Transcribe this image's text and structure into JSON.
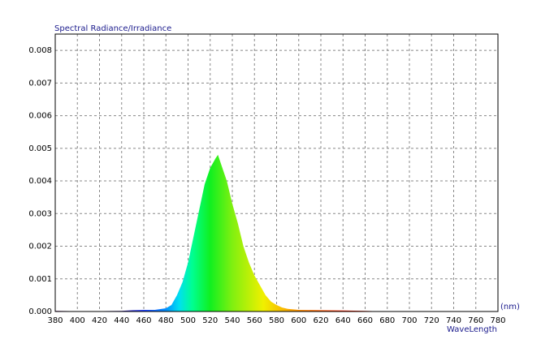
{
  "chart_data": {
    "type": "area",
    "title": "Spectral Radiance/Irradiance",
    "x_unit": "(nm)",
    "x_label": "WaveLength",
    "x": [
      380,
      400,
      420,
      440,
      450,
      460,
      470,
      480,
      485,
      490,
      495,
      500,
      505,
      510,
      515,
      520,
      525,
      527,
      530,
      535,
      540,
      545,
      550,
      555,
      560,
      565,
      570,
      575,
      580,
      585,
      590,
      600,
      620,
      640,
      660,
      680,
      700,
      740,
      780
    ],
    "values": [
      2e-05,
      1e-05,
      1e-05,
      2e-05,
      4e-05,
      5e-05,
      5e-05,
      0.0001,
      0.0002,
      0.0005,
      0.0009,
      0.0015,
      0.0023,
      0.0031,
      0.0039,
      0.0044,
      0.0047,
      0.0048,
      0.0045,
      0.004,
      0.0033,
      0.0027,
      0.002,
      0.0015,
      0.0011,
      0.0008,
      0.0005,
      0.0003,
      0.0002,
      0.00012,
      8e-05,
      5e-05,
      4e-05,
      3e-05,
      2e-05,
      0,
      0,
      0,
      0
    ],
    "xlim": [
      380,
      780
    ],
    "xticks": [
      380,
      400,
      420,
      440,
      460,
      480,
      500,
      520,
      540,
      560,
      580,
      600,
      620,
      640,
      660,
      680,
      700,
      720,
      740,
      760,
      780
    ],
    "ylim": [
      0,
      0.0085
    ],
    "yticks": [
      {
        "value": 0,
        "label": "0.000"
      },
      {
        "value": 0.001,
        "label": "0.001"
      },
      {
        "value": 0.002,
        "label": "0.002"
      },
      {
        "value": 0.003,
        "label": "0.003"
      },
      {
        "value": 0.004,
        "label": "0.004"
      },
      {
        "value": 0.005,
        "label": "0.005"
      },
      {
        "value": 0.006,
        "label": "0.006"
      },
      {
        "value": 0.007,
        "label": "0.007"
      },
      {
        "value": 0.008,
        "label": "0.008"
      }
    ],
    "grid": true
  }
}
